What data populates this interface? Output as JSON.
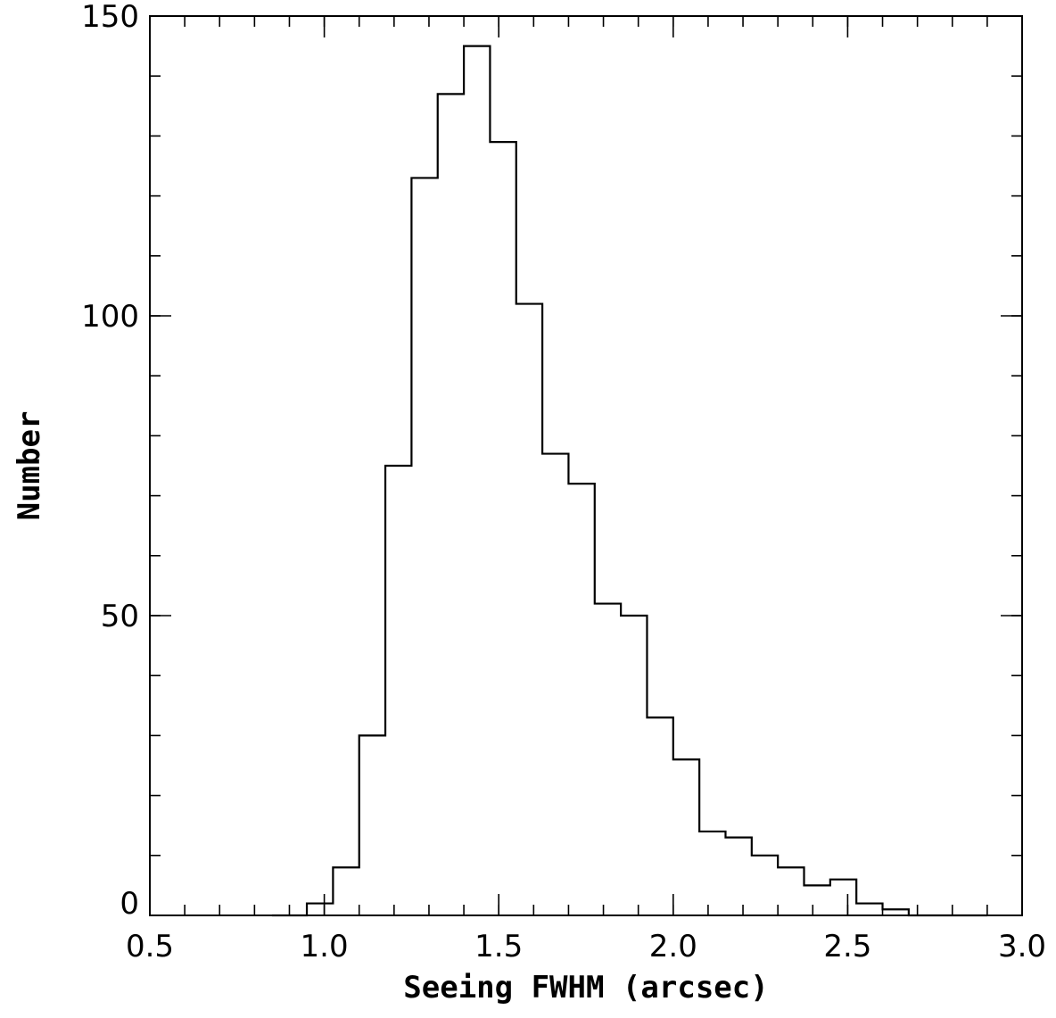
{
  "chart_data": {
    "type": "histogram",
    "xlabel": "Seeing FWHM (arcsec)",
    "ylabel": "Number",
    "xlim": [
      0.5,
      3.0
    ],
    "ylim": [
      0,
      150
    ],
    "x_ticks": [
      "0.5",
      "1.0",
      "1.5",
      "2.0",
      "2.5",
      "3.0"
    ],
    "y_ticks": [
      "0",
      "50",
      "100",
      "150"
    ],
    "x_minor_step": 0.1,
    "y_minor_step": 10,
    "grid": false,
    "bin_width": 0.075,
    "bins": [
      {
        "x0": 0.85,
        "x1": 0.925,
        "count": 0
      },
      {
        "x0": 0.925,
        "x1": 0.95,
        "count": 0
      },
      {
        "x0": 0.95,
        "x1": 1.025,
        "count": 2
      },
      {
        "x0": 1.025,
        "x1": 1.1,
        "count": 8
      },
      {
        "x0": 1.1,
        "x1": 1.175,
        "count": 30
      },
      {
        "x0": 1.175,
        "x1": 1.25,
        "count": 75
      },
      {
        "x0": 1.25,
        "x1": 1.325,
        "count": 123
      },
      {
        "x0": 1.325,
        "x1": 1.4,
        "count": 137
      },
      {
        "x0": 1.4,
        "x1": 1.475,
        "count": 145
      },
      {
        "x0": 1.475,
        "x1": 1.55,
        "count": 129
      },
      {
        "x0": 1.55,
        "x1": 1.625,
        "count": 102
      },
      {
        "x0": 1.625,
        "x1": 1.7,
        "count": 77
      },
      {
        "x0": 1.7,
        "x1": 1.775,
        "count": 72
      },
      {
        "x0": 1.775,
        "x1": 1.85,
        "count": 52
      },
      {
        "x0": 1.85,
        "x1": 1.925,
        "count": 50
      },
      {
        "x0": 1.925,
        "x1": 2.0,
        "count": 33
      },
      {
        "x0": 2.0,
        "x1": 2.075,
        "count": 26
      },
      {
        "x0": 2.075,
        "x1": 2.15,
        "count": 14
      },
      {
        "x0": 2.15,
        "x1": 2.225,
        "count": 13
      },
      {
        "x0": 2.225,
        "x1": 2.3,
        "count": 10
      },
      {
        "x0": 2.3,
        "x1": 2.375,
        "count": 8
      },
      {
        "x0": 2.375,
        "x1": 2.45,
        "count": 5
      },
      {
        "x0": 2.45,
        "x1": 2.525,
        "count": 6
      },
      {
        "x0": 2.525,
        "x1": 2.6,
        "count": 2
      },
      {
        "x0": 2.6,
        "x1": 2.675,
        "count": 1
      },
      {
        "x0": 2.675,
        "x1": 2.9,
        "count": 0
      }
    ]
  }
}
